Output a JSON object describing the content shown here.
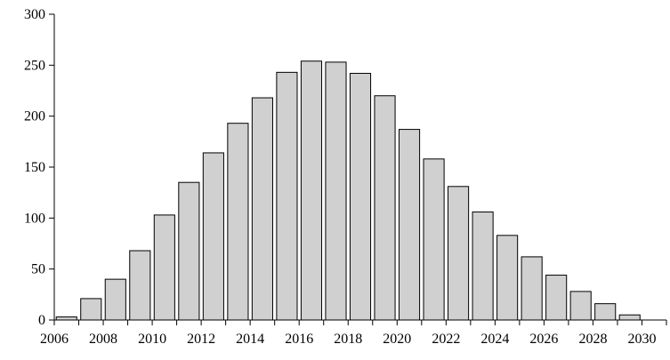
{
  "chart_data": {
    "type": "bar",
    "title": "",
    "xlabel": "",
    "ylabel": "",
    "x": [
      2006,
      2007,
      2008,
      2009,
      2010,
      2011,
      2012,
      2013,
      2014,
      2015,
      2016,
      2017,
      2018,
      2019,
      2020,
      2021,
      2022,
      2023,
      2024,
      2025,
      2026,
      2027,
      2028,
      2029
    ],
    "values": [
      3,
      21,
      40,
      68,
      103,
      135,
      164,
      193,
      218,
      243,
      254,
      253,
      242,
      220,
      187,
      158,
      131,
      106,
      83,
      62,
      44,
      28,
      16,
      5
    ],
    "ylim": [
      0,
      300
    ],
    "xlim": [
      2006,
      2031
    ],
    "yticks": [
      0,
      50,
      100,
      150,
      200,
      250,
      300
    ],
    "xtick_labels": [
      "2006",
      "2008",
      "2010",
      "2012",
      "2014",
      "2016",
      "2018",
      "2020",
      "2022",
      "2024",
      "2026",
      "2028",
      "2030"
    ],
    "grid": false,
    "bar_color": "#d0d0d0",
    "edge_color": "#000000"
  }
}
